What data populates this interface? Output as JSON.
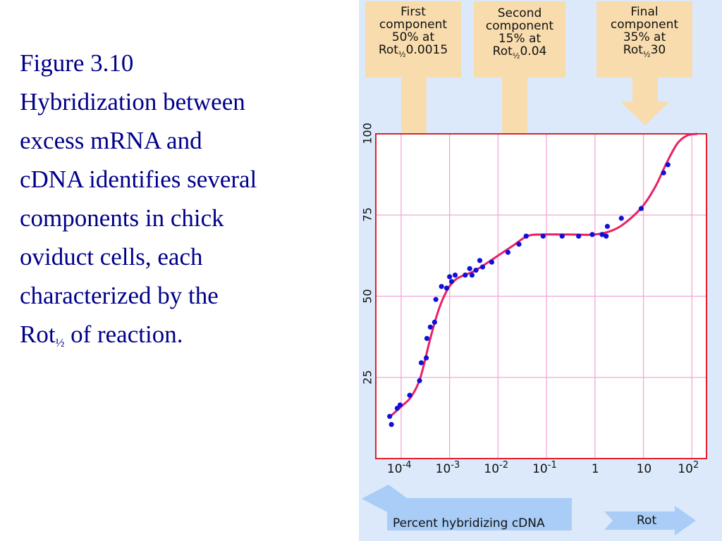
{
  "caption": {
    "line1": "Figure 3.10",
    "line2": "Hybridization between",
    "line3": "excess mRNA and",
    "line4": "cDNA identifies several",
    "line5": "components in chick",
    "line6": "oviduct cells, each",
    "line7": "characterized by the",
    "line8_main": "Rot",
    "line8_sub": "½",
    "line8_rest": " of reaction."
  },
  "components": [
    {
      "line1": "First",
      "line2": "component",
      "line3": "50% at",
      "rot": "Rot",
      "rot_sub": "½",
      "rot_value": "0.0015"
    },
    {
      "line1": "Second",
      "line2": "component",
      "line3": "15% at",
      "rot": "Rot",
      "rot_sub": "½",
      "rot_value": "0.04"
    },
    {
      "line1": "Final",
      "line2": "component",
      "line3": "35% at",
      "rot": "Rot",
      "rot_sub": "½",
      "rot_value": "30"
    }
  ],
  "bottom": {
    "left_label": "Percent hybridizing cDNA",
    "right_label": "Rot"
  },
  "colors": {
    "caption_text": "#00008a",
    "figure_bg": "#dbe9fb",
    "box_fill": "#f8dcae",
    "plot_border": "#e0202e",
    "grid": "#f2a8d6",
    "curve": "#ea1f66",
    "points": "#1010d8",
    "bottom_arrow": "#a9cdf7"
  },
  "chart_data": {
    "type": "scatter",
    "x_scale": "log",
    "xlim": [
      3e-05,
      200
    ],
    "ylim": [
      0,
      100
    ],
    "y_ticks": [
      "25",
      "50",
      "75",
      "100"
    ],
    "x_tick_labels": [
      {
        "base": "10",
        "exp": "-4"
      },
      {
        "base": "10",
        "exp": "-3"
      },
      {
        "base": "10",
        "exp": "-2"
      },
      {
        "base": "10",
        "exp": "-1"
      },
      {
        "base": "1",
        "exp": ""
      },
      {
        "base": "10",
        "exp": ""
      },
      {
        "base": "10",
        "exp": "2"
      }
    ],
    "grid": true,
    "points": [
      {
        "x": 5.8e-05,
        "y": 13
      },
      {
        "x": 6.3e-05,
        "y": 10.5
      },
      {
        "x": 8.3e-05,
        "y": 15.5
      },
      {
        "x": 9.5e-05,
        "y": 16.5
      },
      {
        "x": 0.00015,
        "y": 19.5
      },
      {
        "x": 0.00024,
        "y": 24
      },
      {
        "x": 0.00026,
        "y": 29.5
      },
      {
        "x": 0.00033,
        "y": 31
      },
      {
        "x": 0.00034,
        "y": 37
      },
      {
        "x": 0.0004,
        "y": 40.5
      },
      {
        "x": 0.00049,
        "y": 42
      },
      {
        "x": 0.00052,
        "y": 49
      },
      {
        "x": 0.00068,
        "y": 53
      },
      {
        "x": 0.00087,
        "y": 52.5
      },
      {
        "x": 0.001,
        "y": 56
      },
      {
        "x": 0.0011,
        "y": 54.5
      },
      {
        "x": 0.0013,
        "y": 56.5
      },
      {
        "x": 0.0021,
        "y": 56.5
      },
      {
        "x": 0.0026,
        "y": 58.5
      },
      {
        "x": 0.0029,
        "y": 56.5
      },
      {
        "x": 0.0035,
        "y": 58
      },
      {
        "x": 0.0042,
        "y": 61
      },
      {
        "x": 0.0048,
        "y": 59
      },
      {
        "x": 0.0074,
        "y": 60.5
      },
      {
        "x": 0.016,
        "y": 63.5
      },
      {
        "x": 0.027,
        "y": 66
      },
      {
        "x": 0.038,
        "y": 68.5
      },
      {
        "x": 0.085,
        "y": 68.5
      },
      {
        "x": 0.21,
        "y": 68.5
      },
      {
        "x": 0.46,
        "y": 68.5
      },
      {
        "x": 0.88,
        "y": 69
      },
      {
        "x": 1.4,
        "y": 69
      },
      {
        "x": 1.7,
        "y": 68.5
      },
      {
        "x": 1.8,
        "y": 71.5
      },
      {
        "x": 3.5,
        "y": 74
      },
      {
        "x": 9,
        "y": 77
      },
      {
        "x": 26,
        "y": 88
      },
      {
        "x": 32,
        "y": 90.5
      }
    ],
    "curve": [
      {
        "x": 5.5e-05,
        "y": 12.5
      },
      {
        "x": 0.0001,
        "y": 16
      },
      {
        "x": 0.00016,
        "y": 19
      },
      {
        "x": 0.00025,
        "y": 25
      },
      {
        "x": 0.0004,
        "y": 37
      },
      {
        "x": 0.0006,
        "y": 46
      },
      {
        "x": 0.0009,
        "y": 52
      },
      {
        "x": 0.0013,
        "y": 55
      },
      {
        "x": 0.002,
        "y": 56.5
      },
      {
        "x": 0.003,
        "y": 57.5
      },
      {
        "x": 0.005,
        "y": 59.5
      },
      {
        "x": 0.01,
        "y": 62.5
      },
      {
        "x": 0.02,
        "y": 65.5
      },
      {
        "x": 0.04,
        "y": 68.5
      },
      {
        "x": 0.08,
        "y": 69
      },
      {
        "x": 0.3,
        "y": 69
      },
      {
        "x": 1,
        "y": 69
      },
      {
        "x": 2.5,
        "y": 70.5
      },
      {
        "x": 5,
        "y": 73.5
      },
      {
        "x": 10,
        "y": 78
      },
      {
        "x": 18,
        "y": 84
      },
      {
        "x": 30,
        "y": 91
      },
      {
        "x": 50,
        "y": 97
      },
      {
        "x": 80,
        "y": 99.5
      },
      {
        "x": 130,
        "y": 100
      }
    ]
  }
}
